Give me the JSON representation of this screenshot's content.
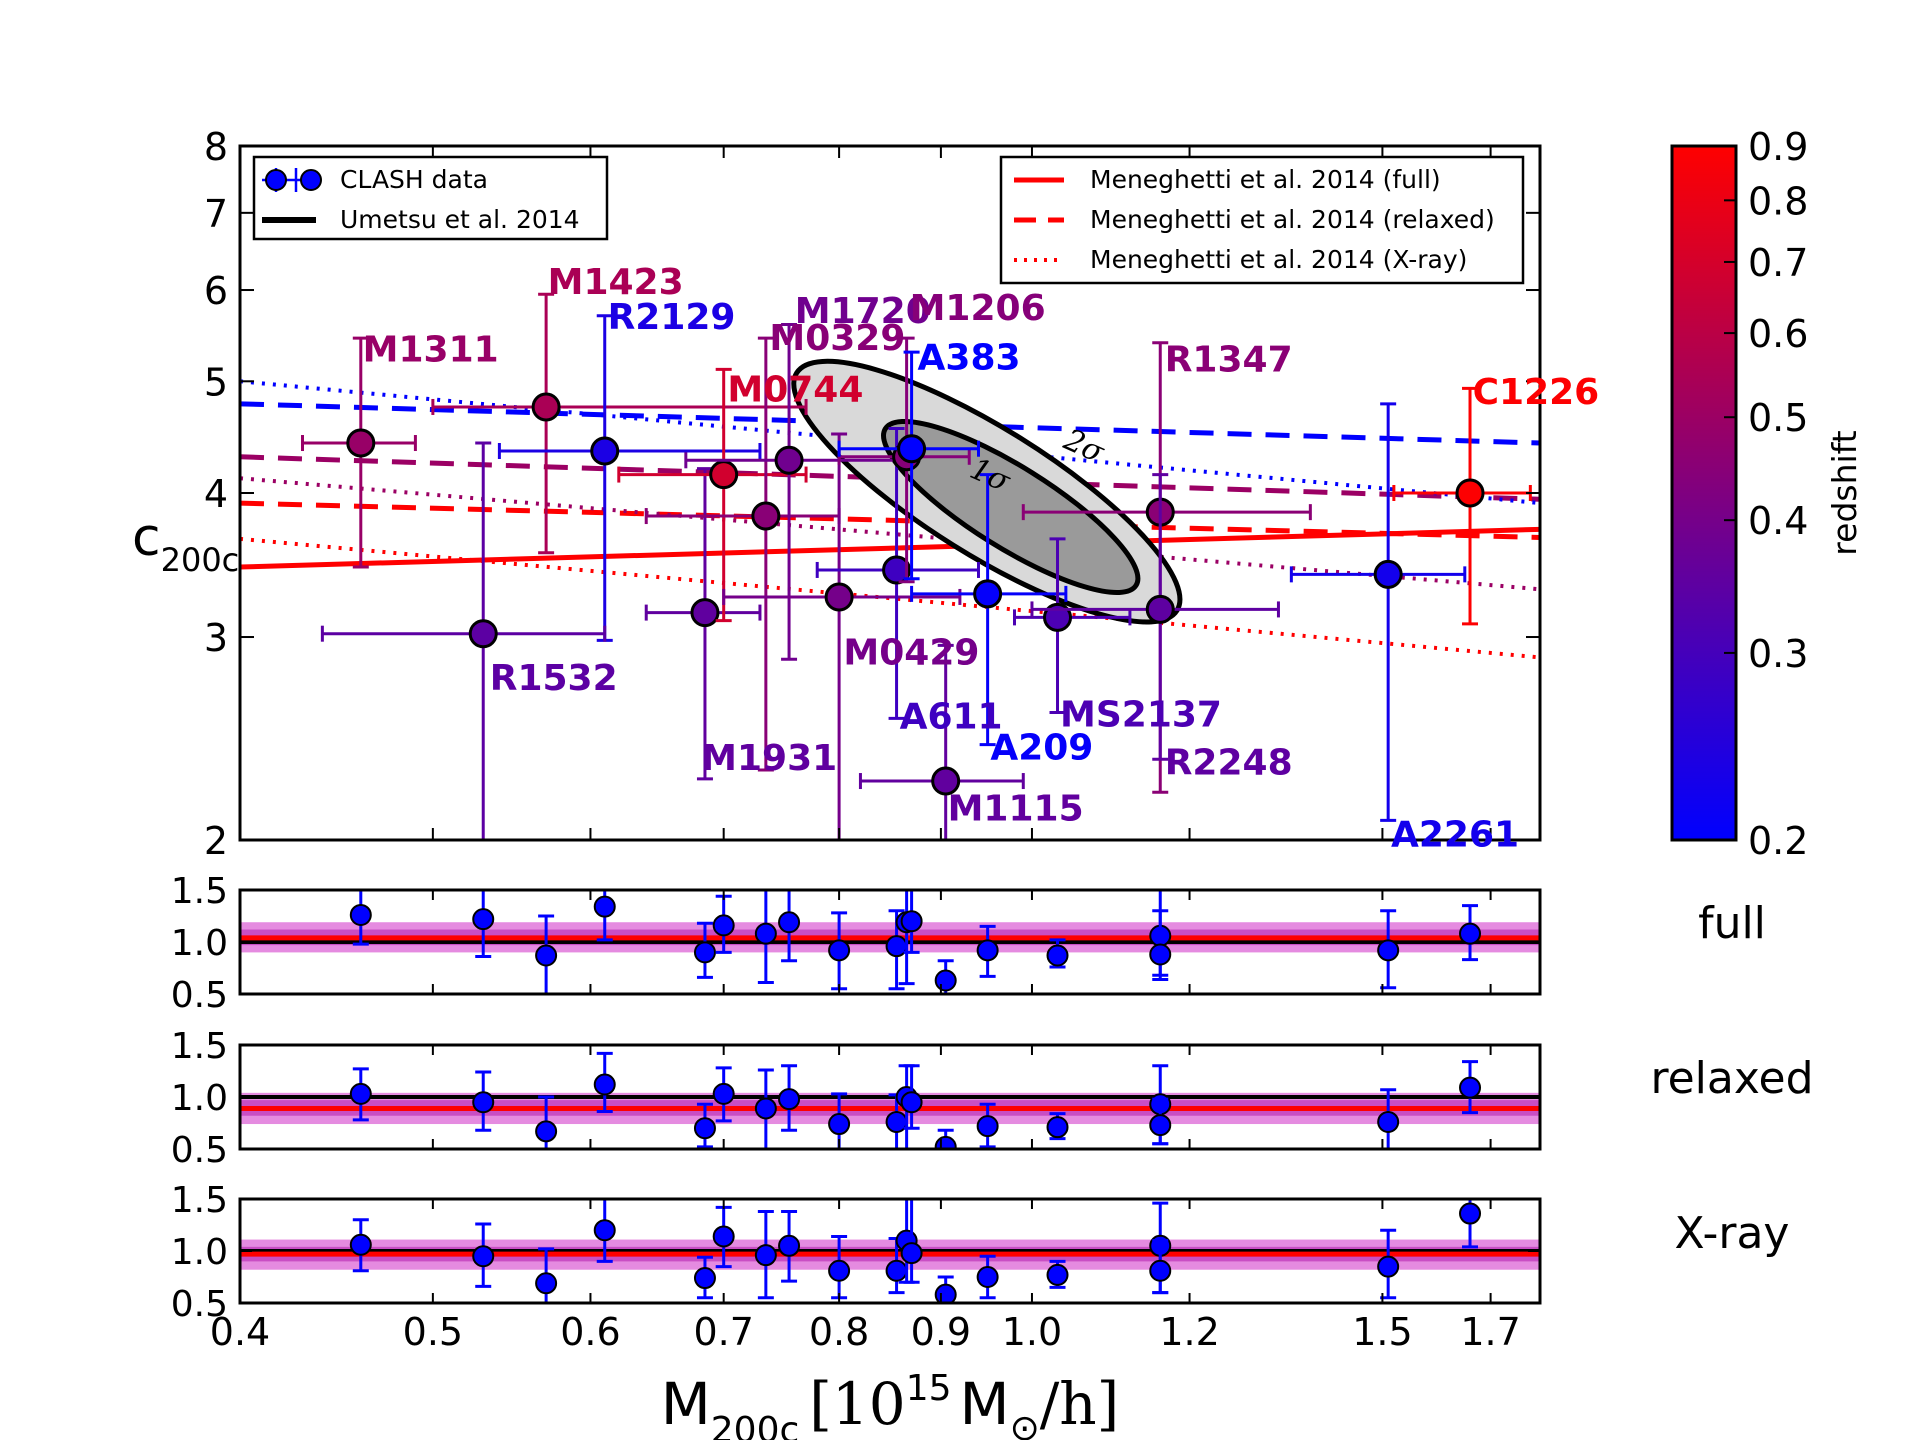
{
  "chart_data": [
    {
      "type": "scatter",
      "panel": "main",
      "xscale": "log",
      "yscale": "log",
      "xlim": [
        0.4,
        1.8
      ],
      "ylim": [
        2,
        8
      ],
      "xticks": [
        "0.4",
        "0.5",
        "0.6",
        "0.7",
        "0.8",
        "0.9",
        "1.0",
        "1.2",
        "1.5",
        "1.7"
      ],
      "yticks": [
        "2",
        "3",
        "4",
        "5",
        "6",
        "7",
        "8"
      ],
      "xlabel": "M",
      "xlabel_sub": "200c",
      "xlabel_unit_open": "[10",
      "xlabel_unit_exp": "15",
      "xlabel_unit_mid": "M",
      "xlabel_unit_sun": "⊙",
      "xlabel_unit_close": "/h]",
      "ylabel": "c",
      "ylabel_sub": "200c",
      "legend_left": {
        "position": "top-left",
        "entries": [
          "CLASH data",
          "Umetsu et al. 2014"
        ]
      },
      "legend_right": {
        "position": "top-right",
        "entries": [
          "Meneghetti et al. 2014 (full)",
          "Meneghetti et al. 2014 (relaxed)",
          "Meneghetti et al. 2014 (X-ray)"
        ]
      },
      "contour_labels": [
        "1σ",
        "2σ"
      ],
      "umetsu_contours": {
        "center": [
          0.86,
          3.95
        ],
        "sigma1": {
          "mass_range": [
            0.85,
            1.12
          ],
          "c_range": [
            3.4,
            4.45
          ]
        },
        "sigma2": {
          "mass_range": [
            0.77,
            1.17
          ],
          "c_range": [
            3.25,
            4.95
          ]
        }
      },
      "clusters": [
        {
          "name": "M1311",
          "mass": 0.46,
          "mass_err": [
            0.43,
            0.49
          ],
          "c": 4.42,
          "c_err": [
            3.45,
            5.45
          ],
          "z": 0.49,
          "label_pos": [
            0.461,
            5.2
          ],
          "label_anchor": "start"
        },
        {
          "name": "M1423",
          "mass": 0.57,
          "mass_err": [
            0.5,
            0.77
          ],
          "c": 4.75,
          "c_err": [
            3.55,
            5.95
          ],
          "z": 0.545,
          "label_pos": [
            0.571,
            5.95
          ],
          "label_anchor": "start"
        },
        {
          "name": "R2129",
          "mass": 0.61,
          "mass_err": [
            0.54,
            0.73
          ],
          "c": 4.35,
          "c_err": [
            2.98,
            5.7
          ],
          "z": 0.234,
          "label_pos": [
            0.612,
            5.55
          ],
          "label_anchor": "start"
        },
        {
          "name": "R1532",
          "mass": 0.53,
          "mass_err": [
            0.44,
            0.61
          ],
          "c": 3.02,
          "c_err": [
            2.0,
            4.42
          ],
          "z": 0.345,
          "label_pos": [
            0.534,
            2.7
          ],
          "label_anchor": "start"
        },
        {
          "name": "M1931",
          "mass": 0.685,
          "mass_err": [
            0.64,
            0.73
          ],
          "c": 3.15,
          "c_err": [
            2.26,
            4.2
          ],
          "z": 0.352,
          "label_pos": [
            0.682,
            2.3
          ],
          "label_anchor": "start"
        },
        {
          "name": "M0744",
          "mass": 0.7,
          "mass_err": [
            0.62,
            0.77
          ],
          "c": 4.15,
          "c_err": [
            3.1,
            5.12
          ],
          "z": 0.686,
          "label_pos": [
            0.703,
            4.8
          ],
          "label_anchor": "start"
        },
        {
          "name": "M0329",
          "mass": 0.735,
          "mass_err": [
            0.64,
            0.8
          ],
          "c": 3.82,
          "c_err": [
            2.3,
            5.45
          ],
          "z": 0.45,
          "label_pos": [
            0.738,
            5.32
          ],
          "label_anchor": "start"
        },
        {
          "name": "M1720",
          "mass": 0.755,
          "mass_err": [
            0.67,
            0.86
          ],
          "c": 4.27,
          "c_err": [
            2.87,
            5.6
          ],
          "z": 0.387,
          "label_pos": [
            0.76,
            5.62
          ],
          "label_anchor": "start"
        },
        {
          "name": "M0429",
          "mass": 0.8,
          "mass_err": [
            0.7,
            0.92
          ],
          "c": 3.25,
          "c_err": [
            2.0,
            4.5
          ],
          "z": 0.399,
          "label_pos": [
            0.804,
            2.84
          ],
          "label_anchor": "start"
        },
        {
          "name": "A611",
          "mass": 0.855,
          "mass_err": [
            0.78,
            0.94
          ],
          "c": 3.43,
          "c_err": [
            2.55,
            4.55
          ],
          "z": 0.288,
          "label_pos": [
            0.858,
            2.5
          ],
          "label_anchor": "start"
        },
        {
          "name": "M1206",
          "mass": 0.865,
          "mass_err": [
            0.8,
            0.93
          ],
          "c": 4.3,
          "c_err": [
            3.35,
            5.45
          ],
          "z": 0.44,
          "label_pos": [
            0.868,
            5.65
          ],
          "label_anchor": "start"
        },
        {
          "name": "A383",
          "mass": 0.87,
          "mass_err": [
            0.8,
            0.94
          ],
          "c": 4.37,
          "c_err": [
            3.37,
            5.3
          ],
          "z": 0.187,
          "label_pos": [
            0.876,
            5.12
          ],
          "label_anchor": "start"
        },
        {
          "name": "M1115",
          "mass": 0.905,
          "mass_err": [
            0.82,
            0.99
          ],
          "c": 2.25,
          "c_err": [
            2.0,
            2.95
          ],
          "z": 0.355,
          "label_pos": [
            0.907,
            2.08
          ],
          "label_anchor": "start"
        },
        {
          "name": "A209",
          "mass": 0.95,
          "mass_err": [
            0.87,
            1.04
          ],
          "c": 3.27,
          "c_err": [
            2.42,
            4.15
          ],
          "z": 0.206,
          "label_pos": [
            0.953,
            2.35
          ],
          "label_anchor": "start"
        },
        {
          "name": "MS2137",
          "mass": 1.03,
          "mass_err": [
            0.98,
            1.12
          ],
          "c": 3.12,
          "c_err": [
            2.58,
            3.65
          ],
          "z": 0.313,
          "label_pos": [
            1.033,
            2.51
          ],
          "label_anchor": "start"
        },
        {
          "name": "R1347",
          "mass": 1.16,
          "mass_err": [
            0.99,
            1.38
          ],
          "c": 3.85,
          "c_err": [
            2.2,
            5.4
          ],
          "z": 0.451,
          "label_pos": [
            1.166,
            5.1
          ],
          "label_anchor": "start"
        },
        {
          "name": "R2248",
          "mass": 1.16,
          "mass_err": [
            1.0,
            1.33
          ],
          "c": 3.17,
          "c_err": [
            2.35,
            4.15
          ],
          "z": 0.348,
          "label_pos": [
            1.166,
            2.28
          ],
          "label_anchor": "start"
        },
        {
          "name": "A2261",
          "mass": 1.51,
          "mass_err": [
            1.35,
            1.65
          ],
          "c": 3.4,
          "c_err": [
            2.08,
            4.78
          ],
          "z": 0.224,
          "label_pos": [
            1.515,
            1.975
          ],
          "label_anchor": "start"
        },
        {
          "name": "C1226",
          "mass": 1.66,
          "mass_err": [
            1.52,
            1.78
          ],
          "c": 4.0,
          "c_err": [
            3.08,
            4.93
          ],
          "z": 0.89,
          "label_pos": [
            1.665,
            4.78
          ],
          "label_anchor": "start"
        }
      ],
      "model_lines": [
        {
          "name": "Meneghetti et al. 2014 (full)",
          "z": 0.9,
          "style": "solid",
          "c_at_xmin": 3.45,
          "c_at_xmax": 3.72
        },
        {
          "name": "Meneghetti et al. 2014 (relaxed)",
          "z": 0.2,
          "style": "dashed",
          "c_at_xmin": 4.78,
          "c_at_xmax": 4.42
        },
        {
          "name": "Meneghetti et al. 2014 (relaxed)",
          "z": 0.5,
          "style": "dashed",
          "c_at_xmin": 4.3,
          "c_at_xmax": 3.95
        },
        {
          "name": "Meneghetti et al. 2014 (relaxed)",
          "z": 0.9,
          "style": "dashed",
          "c_at_xmin": 3.92,
          "c_at_xmax": 3.66
        },
        {
          "name": "Meneghetti et al. 2014 (X-ray)",
          "z": 0.2,
          "style": "dotted",
          "c_at_xmin": 5.0,
          "c_at_xmax": 3.92
        },
        {
          "name": "Meneghetti et al. 2014 (X-ray)",
          "z": 0.5,
          "style": "dotted",
          "c_at_xmin": 4.12,
          "c_at_xmax": 3.3
        },
        {
          "name": "Meneghetti et al. 2014 (X-ray)",
          "z": 0.9,
          "style": "dotted",
          "c_at_xmin": 3.65,
          "c_at_xmax": 2.88
        }
      ]
    },
    {
      "type": "colorbar",
      "label": "redshift",
      "scale": "log",
      "range": [
        0.2,
        0.9
      ],
      "ticks": [
        "0.2",
        "0.3",
        "0.4",
        "0.5",
        "0.6",
        "0.7",
        "0.8",
        "0.9"
      ],
      "colors": [
        "#0000ff",
        "#ff0000"
      ]
    },
    {
      "type": "scatter",
      "panel": "full",
      "label": "full",
      "ylim": [
        0.5,
        1.5
      ],
      "yticks": [
        "0.5",
        "1.0",
        "1.5"
      ],
      "band_center": 1.04,
      "band_inner": [
        0.97,
        1.12
      ],
      "band_outer": [
        0.9,
        1.19
      ],
      "ratios": [
        1.26,
        0.87,
        1.34,
        1.22,
        0.9,
        1.16,
        1.08,
        1.19,
        0.92,
        0.96,
        1.19,
        1.2,
        0.63,
        0.92,
        0.87,
        1.06,
        0.88,
        0.92,
        1.08
      ],
      "ratio_err": [
        [
          0.98,
          1.52
        ],
        [
          0.5,
          1.25
        ],
        [
          1.02,
          1.55
        ],
        [
          0.86,
          1.52
        ],
        [
          0.66,
          1.18
        ],
        [
          0.9,
          1.44
        ],
        [
          0.61,
          1.55
        ],
        [
          0.82,
          1.55
        ],
        [
          0.55,
          1.28
        ],
        [
          0.55,
          1.3
        ],
        [
          0.6,
          1.55
        ],
        [
          0.9,
          1.55
        ],
        [
          0.5,
          0.82
        ],
        [
          0.67,
          1.15
        ],
        [
          0.76,
          1.02
        ],
        [
          0.68,
          1.5
        ],
        [
          0.64,
          1.3
        ],
        [
          0.56,
          1.3
        ],
        [
          0.83,
          1.35
        ]
      ]
    },
    {
      "type": "scatter",
      "panel": "relaxed",
      "label": "relaxed",
      "ylim": [
        0.5,
        1.5
      ],
      "yticks": [
        "0.5",
        "1.0",
        "1.5"
      ],
      "band_center": 0.89,
      "band_inner": [
        0.82,
        0.97
      ],
      "band_outer": [
        0.74,
        1.04
      ],
      "ratios": [
        1.03,
        0.67,
        1.12,
        0.95,
        0.7,
        1.03,
        0.89,
        0.98,
        0.74,
        0.76,
        1.0,
        0.95,
        0.52,
        0.72,
        0.71,
        0.93,
        0.73,
        0.76,
        1.09
      ],
      "ratio_err": [
        [
          0.78,
          1.27
        ],
        [
          0.5,
          1.0
        ],
        [
          0.86,
          1.42
        ],
        [
          0.68,
          1.24
        ],
        [
          0.52,
          0.93
        ],
        [
          0.77,
          1.28
        ],
        [
          0.5,
          1.26
        ],
        [
          0.68,
          1.3
        ],
        [
          0.5,
          1.03
        ],
        [
          0.5,
          1.02
        ],
        [
          0.5,
          1.3
        ],
        [
          0.7,
          1.3
        ],
        [
          0.5,
          0.68
        ],
        [
          0.52,
          0.93
        ],
        [
          0.6,
          0.84
        ],
        [
          0.55,
          1.3
        ],
        [
          0.55,
          0.98
        ],
        [
          0.5,
          1.07
        ],
        [
          0.85,
          1.34
        ]
      ]
    },
    {
      "type": "scatter",
      "panel": "xray",
      "label": "X-ray",
      "ylim": [
        0.5,
        1.5
      ],
      "yticks": [
        "0.5",
        "1.0",
        "1.5"
      ],
      "band_center": 0.97,
      "band_inner": [
        0.9,
        1.04
      ],
      "band_outer": [
        0.82,
        1.11
      ],
      "ratios": [
        1.06,
        0.69,
        1.2,
        0.95,
        0.74,
        1.14,
        0.96,
        1.05,
        0.81,
        0.81,
        1.1,
        0.98,
        0.58,
        0.75,
        0.77,
        1.05,
        0.81,
        0.85,
        1.36
      ],
      "ratio_err": [
        [
          0.81,
          1.3
        ],
        [
          0.5,
          1.02
        ],
        [
          0.9,
          1.5
        ],
        [
          0.66,
          1.26
        ],
        [
          0.55,
          0.94
        ],
        [
          0.85,
          1.42
        ],
        [
          0.55,
          1.38
        ],
        [
          0.71,
          1.38
        ],
        [
          0.55,
          1.14
        ],
        [
          0.6,
          1.12
        ],
        [
          0.7,
          1.5
        ],
        [
          0.7,
          1.5
        ],
        [
          0.5,
          0.75
        ],
        [
          0.55,
          0.95
        ],
        [
          0.65,
          0.9
        ],
        [
          0.6,
          1.46
        ],
        [
          0.6,
          1.1
        ],
        [
          0.55,
          1.2
        ],
        [
          1.04,
          1.65
        ]
      ]
    }
  ]
}
